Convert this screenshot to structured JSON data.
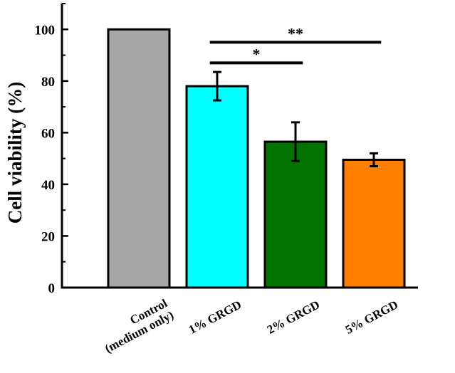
{
  "chart_data": {
    "type": "bar",
    "title": "",
    "xlabel": "",
    "ylabel": "Cell viability (%)",
    "ylim": [
      0,
      110
    ],
    "yticks": [
      0,
      20,
      40,
      60,
      80,
      100
    ],
    "categories": [
      [
        "Control",
        "(medium only)"
      ],
      [
        "1% GRGD"
      ],
      [
        "2% GRGD"
      ],
      [
        "5% GRGD"
      ]
    ],
    "values": [
      100,
      78,
      56.5,
      49.5
    ],
    "errors": [
      0,
      5.5,
      7.5,
      2.5
    ],
    "colors": [
      "#a6a6a6",
      "#00ffff",
      "#007300",
      "#ff8000"
    ],
    "significance": [
      {
        "from": 1,
        "to": 2,
        "label": "*",
        "y": 87
      },
      {
        "from": 1,
        "to": 3,
        "label": "**",
        "y": 95
      }
    ]
  }
}
